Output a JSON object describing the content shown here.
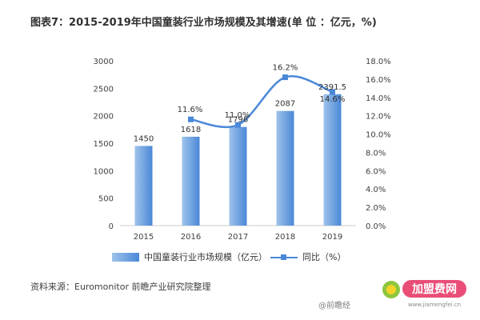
{
  "title": "图表7：2015-2019年中国童装行业市场规模及其增速(单 位 ：亿元，%)",
  "source": "资料来源：Euromonitor 前瞻产业研究院整理",
  "credit": "@前瞻经",
  "logo": {
    "name": "加盟费网",
    "url": "www.jiamengfei.cn"
  },
  "chart_data": {
    "type": "bar",
    "categories": [
      "2015",
      "2016",
      "2017",
      "2018",
      "2019"
    ],
    "series": [
      {
        "name": "中国童装行业市场规模（亿元）",
        "type": "bar",
        "axis": "left",
        "values": [
          1450,
          1618,
          1796,
          2087,
          2391.5
        ],
        "labels": [
          "1450",
          "1618",
          "1796",
          "2087",
          "2391.5"
        ]
      },
      {
        "name": "同比（%）",
        "type": "line",
        "axis": "right",
        "values": [
          null,
          11.6,
          11.0,
          16.2,
          14.6
        ],
        "labels": [
          "",
          "11.6%",
          "11.0%",
          "16.2%",
          "14.6%"
        ]
      }
    ],
    "y_left": {
      "min": 0,
      "max": 3000,
      "ticks": [
        0,
        500,
        1000,
        1500,
        2000,
        2500,
        3000
      ]
    },
    "y_right": {
      "min": 0,
      "max": 18,
      "ticks": [
        "0.0%",
        "2.0%",
        "4.0%",
        "6.0%",
        "8.0%",
        "10.0%",
        "12.0%",
        "14.0%",
        "16.0%",
        "18.0%"
      ]
    },
    "grid": false,
    "legend": "bottom",
    "colors": {
      "bar_light": "#9fc3ea",
      "bar_dark": "#4a88d8",
      "line": "#4a88d8",
      "axis": "#cccccc"
    }
  }
}
